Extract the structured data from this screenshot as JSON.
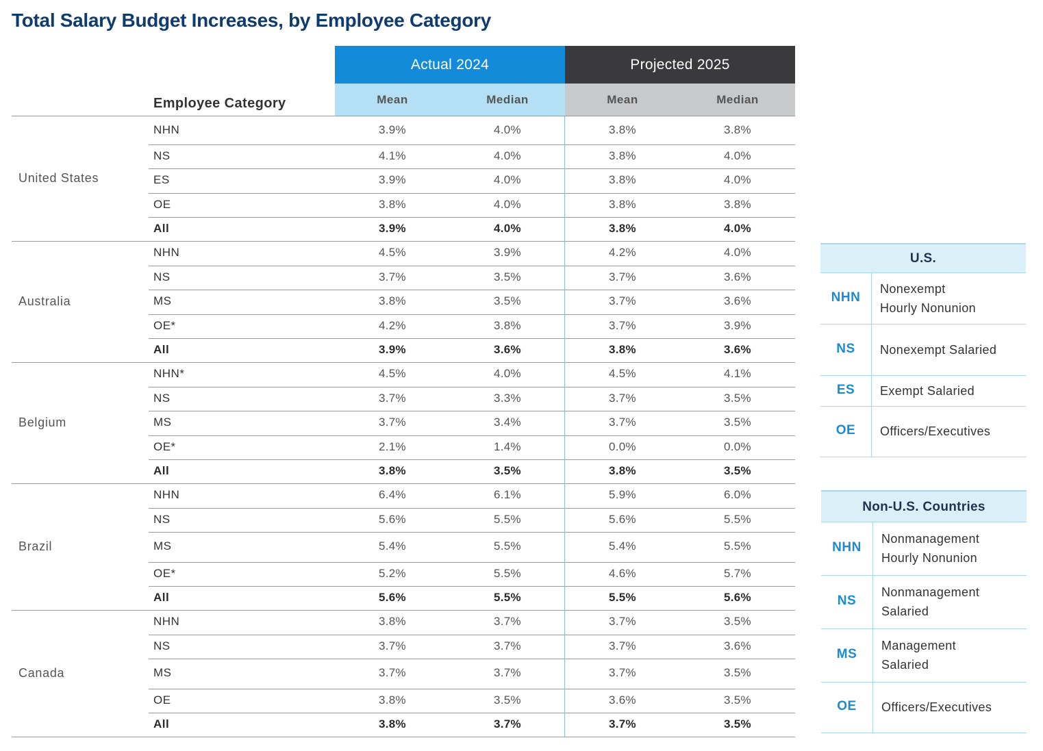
{
  "title": "Total Salary Budget Increases, by Employee Category",
  "header": {
    "actual": "Actual 2024",
    "projected": "Projected 2025",
    "mean": "Mean",
    "median": "Median",
    "employee_category": "Employee Category"
  },
  "chart_data": {
    "type": "table",
    "title": "Total Salary Budget Increases, by Employee Category",
    "columns": [
      "Actual 2024 Mean",
      "Actual 2024 Median",
      "Projected 2025 Mean",
      "Projected 2025 Median"
    ],
    "groups": [
      {
        "country": "United States",
        "rows": [
          {
            "category": "NHN",
            "values": [
              "3.9%",
              "4.0%",
              "3.8%",
              "3.8%"
            ]
          },
          {
            "category": "NS",
            "values": [
              "4.1%",
              "4.0%",
              "3.8%",
              "4.0%"
            ]
          },
          {
            "category": "ES",
            "values": [
              "3.9%",
              "4.0%",
              "3.8%",
              "4.0%"
            ]
          },
          {
            "category": "OE",
            "values": [
              "3.8%",
              "4.0%",
              "3.8%",
              "3.8%"
            ]
          },
          {
            "category": "All",
            "values": [
              "3.9%",
              "4.0%",
              "3.8%",
              "4.0%"
            ]
          }
        ]
      },
      {
        "country": "Australia",
        "rows": [
          {
            "category": "NHN",
            "values": [
              "4.5%",
              "3.9%",
              "4.2%",
              "4.0%"
            ]
          },
          {
            "category": "NS",
            "values": [
              "3.7%",
              "3.5%",
              "3.7%",
              "3.6%"
            ]
          },
          {
            "category": "MS",
            "values": [
              "3.8%",
              "3.5%",
              "3.7%",
              "3.6%"
            ]
          },
          {
            "category": "OE*",
            "values": [
              "4.2%",
              "3.8%",
              "3.7%",
              "3.9%"
            ]
          },
          {
            "category": "All",
            "values": [
              "3.9%",
              "3.6%",
              "3.8%",
              "3.6%"
            ]
          }
        ]
      },
      {
        "country": "Belgium",
        "rows": [
          {
            "category": "NHN*",
            "values": [
              "4.5%",
              "4.0%",
              "4.5%",
              "4.1%"
            ]
          },
          {
            "category": "NS",
            "values": [
              "3.7%",
              "3.3%",
              "3.7%",
              "3.5%"
            ]
          },
          {
            "category": "MS",
            "values": [
              "3.7%",
              "3.4%",
              "3.7%",
              "3.5%"
            ]
          },
          {
            "category": "OE*",
            "values": [
              "2.1%",
              "1.4%",
              "0.0%",
              "0.0%"
            ]
          },
          {
            "category": "All",
            "values": [
              "3.8%",
              "3.5%",
              "3.8%",
              "3.5%"
            ]
          }
        ]
      },
      {
        "country": "Brazil",
        "rows": [
          {
            "category": "NHN",
            "values": [
              "6.4%",
              "6.1%",
              "5.9%",
              "6.0%"
            ]
          },
          {
            "category": "NS",
            "values": [
              "5.6%",
              "5.5%",
              "5.6%",
              "5.5%"
            ]
          },
          {
            "category": "MS",
            "values": [
              "5.4%",
              "5.5%",
              "5.4%",
              "5.5%"
            ]
          },
          {
            "category": "OE*",
            "values": [
              "5.2%",
              "5.5%",
              "4.6%",
              "5.7%"
            ]
          },
          {
            "category": "All",
            "values": [
              "5.6%",
              "5.5%",
              "5.5%",
              "5.6%"
            ]
          }
        ]
      },
      {
        "country": "Canada",
        "rows": [
          {
            "category": "NHN",
            "values": [
              "3.8%",
              "3.7%",
              "3.7%",
              "3.5%"
            ]
          },
          {
            "category": "NS",
            "values": [
              "3.7%",
              "3.7%",
              "3.7%",
              "3.6%"
            ]
          },
          {
            "category": "MS",
            "values": [
              "3.7%",
              "3.7%",
              "3.7%",
              "3.5%"
            ]
          },
          {
            "category": "OE",
            "values": [
              "3.8%",
              "3.5%",
              "3.6%",
              "3.5%"
            ]
          },
          {
            "category": "All",
            "values": [
              "3.8%",
              "3.7%",
              "3.7%",
              "3.5%"
            ]
          }
        ]
      }
    ]
  },
  "legend_us": {
    "title": "U.S.",
    "items": [
      {
        "abbr": "NHN",
        "lines": [
          "Nonexempt",
          "Hourly Nonunion"
        ]
      },
      {
        "abbr": "NS",
        "lines": [
          "Nonexempt Salaried"
        ]
      },
      {
        "abbr": "ES",
        "lines": [
          "Exempt Salaried"
        ]
      },
      {
        "abbr": "OE",
        "lines": [
          "Officers/Executives"
        ]
      }
    ]
  },
  "legend_non_us": {
    "title": "Non-U.S. Countries",
    "items": [
      {
        "abbr": "NHN",
        "lines": [
          "Nonmanagement",
          "Hourly Nonunion"
        ]
      },
      {
        "abbr": "NS",
        "lines": [
          "Nonmanagement",
          "Salaried"
        ]
      },
      {
        "abbr": "MS",
        "lines": [
          "Management",
          "Salaried"
        ]
      },
      {
        "abbr": "OE",
        "lines": [
          "Officers/Executives"
        ]
      }
    ]
  }
}
